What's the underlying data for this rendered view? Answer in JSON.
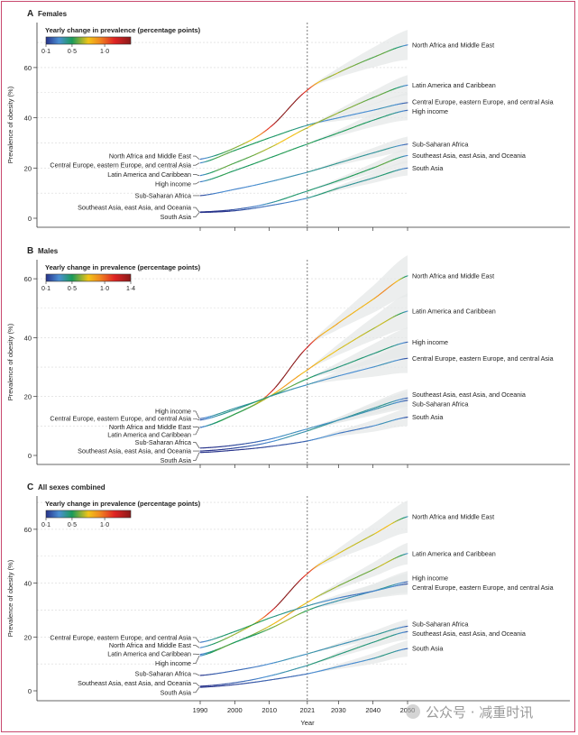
{
  "chart_data": [
    {
      "type": "line",
      "panel_letter": "A",
      "title": "Females",
      "ylabel": "Prevalence of obesity (%)",
      "xlabel": "",
      "ylim": [
        0,
        70
      ],
      "yticks": [
        0,
        20,
        40,
        60
      ],
      "xticks": [
        1990,
        2000,
        2010,
        2021,
        2030,
        2040,
        2050
      ],
      "show_xtick_labels": false,
      "reference_year": 2021,
      "grid": true,
      "colorbar": {
        "title": "Yearly change in prevalence (percentage points)",
        "range": [
          0.1,
          1.4
        ],
        "tick_values": [
          0.1,
          0.5,
          1.0
        ],
        "tick_labels": [
          "0·1",
          "0·5",
          "1·0"
        ]
      },
      "x": [
        1990,
        2000,
        2010,
        2021,
        2030,
        2040,
        2050
      ],
      "series": [
        {
          "name": "North Africa and Middle East",
          "values": [
            23.5,
            28,
            36,
            51,
            58,
            64,
            69
          ],
          "uncertainty_2050": 6
        },
        {
          "name": "Central Europe, eastern Europe, and central Asia",
          "values": [
            22,
            27,
            32,
            37,
            40,
            43,
            46
          ],
          "uncertainty_2050": 4
        },
        {
          "name": "Latin America and Caribbean",
          "values": [
            17,
            22,
            28,
            36,
            42,
            48,
            53
          ],
          "uncertainty_2050": 4
        },
        {
          "name": "High income",
          "values": [
            14.5,
            19,
            24,
            29.5,
            34,
            39,
            43
          ],
          "uncertainty_2050": 4
        },
        {
          "name": "Sub-Saharan Africa",
          "values": [
            9,
            11.5,
            14.5,
            18.3,
            22,
            26,
            29.5
          ],
          "uncertainty_2050": 3
        },
        {
          "name": "Southeast Asia, east Asia, and Oceania",
          "values": [
            2.5,
            3.5,
            6,
            10.8,
            15,
            20,
            25
          ],
          "uncertainty_2050": 3
        },
        {
          "name": "South Asia",
          "values": [
            2.3,
            3,
            5,
            8,
            12,
            16,
            20
          ],
          "uncertainty_2050": 3
        }
      ]
    },
    {
      "type": "line",
      "panel_letter": "B",
      "title": "Males",
      "ylabel": "Prevalence of obesity (%)",
      "xlabel": "",
      "ylim": [
        0,
        65
      ],
      "yticks": [
        0,
        20,
        40,
        60
      ],
      "xticks": [
        1990,
        2000,
        2010,
        2021,
        2030,
        2040,
        2050
      ],
      "show_xtick_labels": false,
      "reference_year": 2021,
      "grid": true,
      "colorbar": {
        "title": "Yearly change in prevalence (percentage points)",
        "range": [
          0.1,
          1.4
        ],
        "tick_values": [
          0.1,
          0.5,
          1.0,
          1.4
        ],
        "tick_labels": [
          "0·1",
          "0·5",
          "1·0",
          "1·4"
        ]
      },
      "x": [
        1990,
        2000,
        2010,
        2021,
        2030,
        2040,
        2050
      ],
      "series": [
        {
          "name": "North Africa and Middle East",
          "values": [
            9.5,
            14,
            21,
            36.7,
            45,
            53,
            61
          ],
          "uncertainty_2050": 7
        },
        {
          "name": "Latin America and Caribbean",
          "values": [
            9.5,
            14,
            20,
            29,
            36,
            43,
            49
          ],
          "uncertainty_2050": 6
        },
        {
          "name": "High income",
          "values": [
            12.5,
            16,
            20,
            26,
            30,
            34.5,
            38.5
          ],
          "uncertainty_2050": 5
        },
        {
          "name": "Central Europe, eastern Europe, and central Asia",
          "values": [
            12,
            15.5,
            20,
            24,
            27,
            30,
            33
          ],
          "uncertainty_2050": 5
        },
        {
          "name": "Southeast Asia, east Asia, and Oceania",
          "values": [
            1.5,
            2.5,
            4.5,
            8.3,
            12,
            16,
            19.5
          ],
          "uncertainty_2050": 3
        },
        {
          "name": "Sub-Saharan Africa",
          "values": [
            2.5,
            3.5,
            5.5,
            9,
            12,
            15.5,
            18.7
          ],
          "uncertainty_2050": 3
        },
        {
          "name": "South Asia",
          "values": [
            1,
            1.8,
            3,
            4.9,
            7.5,
            10,
            13
          ],
          "uncertainty_2050": 3
        }
      ]
    },
    {
      "type": "line",
      "panel_letter": "C",
      "title": "All sexes combined",
      "ylabel": "Prevalence of obesity (%)",
      "xlabel": "Year",
      "ylim": [
        0,
        70
      ],
      "yticks": [
        0,
        20,
        40,
        60
      ],
      "xticks": [
        1990,
        2000,
        2010,
        2021,
        2030,
        2040,
        2050
      ],
      "show_xtick_labels": true,
      "reference_year": 2021,
      "grid": true,
      "colorbar": {
        "title": "Yearly change in prevalence (percentage points)",
        "range": [
          0.1,
          1.4
        ],
        "tick_values": [
          0.1,
          0.5,
          1.0
        ],
        "tick_labels": [
          "0·1",
          "0·5",
          "1·0"
        ]
      },
      "x": [
        1990,
        2000,
        2010,
        2021,
        2030,
        2040,
        2050
      ],
      "series": [
        {
          "name": "North Africa and Middle East",
          "values": [
            16,
            21,
            29,
            43.5,
            51,
            58,
            64.7
          ],
          "uncertainty_2050": 6
        },
        {
          "name": "Latin America and Caribbean",
          "values": [
            13.5,
            18,
            24,
            32.8,
            39,
            45,
            51
          ],
          "uncertainty_2050": 4
        },
        {
          "name": "High income",
          "values": [
            13,
            18,
            23,
            29.8,
            33.5,
            37,
            40.5
          ],
          "uncertainty_2050": 4
        },
        {
          "name": "Central Europe, eastern Europe, and central Asia",
          "values": [
            18,
            22,
            27,
            31.5,
            34.5,
            37,
            39.7
          ],
          "uncertainty_2050": 4
        },
        {
          "name": "Sub-Saharan Africa",
          "values": [
            5.7,
            7.5,
            10,
            13.7,
            17,
            20.5,
            24
          ],
          "uncertainty_2050": 2.5
        },
        {
          "name": "Southeast Asia, east Asia, and Oceania",
          "values": [
            1.7,
            3,
            5.5,
            9.4,
            13.5,
            18,
            22
          ],
          "uncertainty_2050": 3
        },
        {
          "name": "South Asia",
          "values": [
            1.3,
            2.3,
            4,
            6.3,
            9,
            12,
            15.7
          ],
          "uncertainty_2050": 3
        }
      ]
    }
  ],
  "colors": {
    "frame": "#c8496e",
    "band": "#e6e8e8",
    "colormap": [
      "#26328a",
      "#4b8fd3",
      "#1a9a5a",
      "#f2c418",
      "#f08a20",
      "#e02424",
      "#8a1a1a"
    ]
  },
  "watermark": "公众号 · 减重时讯"
}
